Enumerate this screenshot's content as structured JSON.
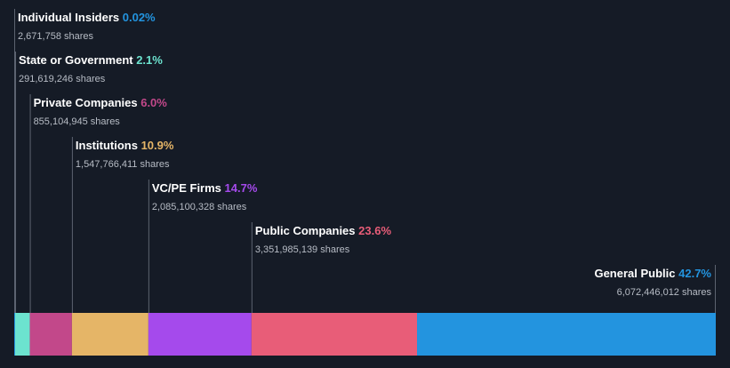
{
  "chart_data": {
    "type": "bar",
    "orientation": "stacked-horizontal",
    "unit": "%",
    "categories": [
      "Individual Insiders",
      "State or Government",
      "Private Companies",
      "Institutions",
      "VC/PE Firms",
      "Public Companies",
      "General Public"
    ],
    "values": [
      0.02,
      2.1,
      6.0,
      10.9,
      14.7,
      23.6,
      42.7
    ],
    "segments": [
      {
        "name": "Individual Insiders",
        "pct": 0.02,
        "pct_label": "0.02%",
        "shares": "2,671,758 shares",
        "color": "#2394df"
      },
      {
        "name": "State or Government",
        "pct": 2.1,
        "pct_label": "2.1%",
        "shares": "291,619,246 shares",
        "color": "#6ce3cf"
      },
      {
        "name": "Private Companies",
        "pct": 6.0,
        "pct_label": "6.0%",
        "shares": "855,104,945 shares",
        "color": "#c2488a"
      },
      {
        "name": "Institutions",
        "pct": 10.9,
        "pct_label": "10.9%",
        "shares": "1,547,766,411 shares",
        "color": "#e5b567"
      },
      {
        "name": "VC/PE Firms",
        "pct": 14.7,
        "pct_label": "14.7%",
        "shares": "2,085,100,328 shares",
        "color": "#a54aec"
      },
      {
        "name": "Public Companies",
        "pct": 23.6,
        "pct_label": "23.6%",
        "shares": "3,351,985,139 shares",
        "color": "#e85d78"
      },
      {
        "name": "General Public",
        "pct": 42.7,
        "pct_label": "42.7%",
        "shares": "6,072,446,012 shares",
        "color": "#2394df"
      }
    ],
    "title": "",
    "xlabel": "",
    "ylabel": "",
    "grid": false,
    "legend": "none"
  },
  "colors": {
    "background": "#151b26",
    "label_text": "#ffffff",
    "shares_text": "#b7bcc5",
    "leader_line": "#5c6370",
    "segment_divider": "#151b26"
  }
}
